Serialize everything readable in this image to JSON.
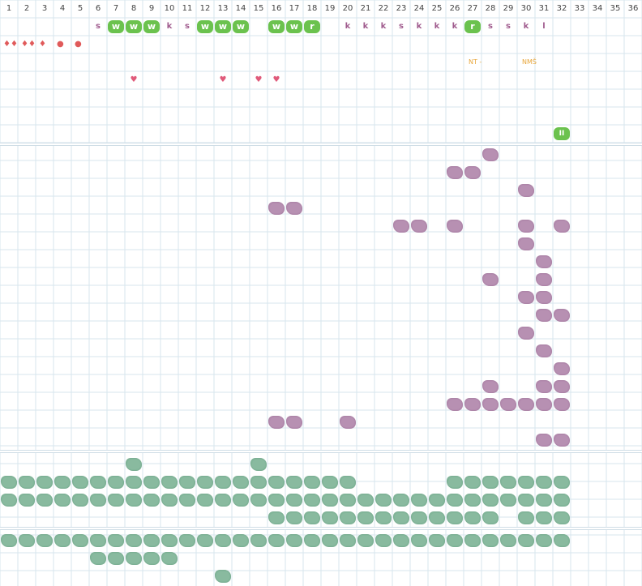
{
  "columns": [
    "1",
    "2",
    "3",
    "4",
    "5",
    "6",
    "7",
    "8",
    "9",
    "10",
    "11",
    "12",
    "13",
    "14",
    "15",
    "16",
    "17",
    "18",
    "19",
    "20",
    "21",
    "22",
    "23",
    "24",
    "25",
    "26",
    "27",
    "28",
    "29",
    "30",
    "31",
    "32",
    "33",
    "34",
    "35",
    "36"
  ],
  "colors": {
    "grid_line": "#d7e6ee",
    "green_letter": "#6bc24e",
    "purple_letter": "#a05c8e",
    "drop": "#e05a5a",
    "heart": "#e05a7a",
    "note": "#e8a63a",
    "purple_blob": "#b38aae",
    "green_blob": "#82b69a"
  },
  "letters_row": [
    {
      "col": 6,
      "text": "s",
      "style": "purple"
    },
    {
      "col": 7,
      "text": "w",
      "style": "green"
    },
    {
      "col": 8,
      "text": "w",
      "style": "green"
    },
    {
      "col": 9,
      "text": "w",
      "style": "green"
    },
    {
      "col": 10,
      "text": "k",
      "style": "purple"
    },
    {
      "col": 11,
      "text": "s",
      "style": "purple"
    },
    {
      "col": 12,
      "text": "w",
      "style": "green"
    },
    {
      "col": 13,
      "text": "w",
      "style": "green"
    },
    {
      "col": 14,
      "text": "w",
      "style": "green"
    },
    {
      "col": 16,
      "text": "w",
      "style": "green"
    },
    {
      "col": 17,
      "text": "w",
      "style": "green"
    },
    {
      "col": 18,
      "text": "r",
      "style": "green"
    },
    {
      "col": 20,
      "text": "k",
      "style": "purple"
    },
    {
      "col": 21,
      "text": "k",
      "style": "purple"
    },
    {
      "col": 22,
      "text": "k",
      "style": "purple"
    },
    {
      "col": 23,
      "text": "s",
      "style": "purple"
    },
    {
      "col": 24,
      "text": "k",
      "style": "purple"
    },
    {
      "col": 25,
      "text": "k",
      "style": "purple"
    },
    {
      "col": 26,
      "text": "k",
      "style": "purple"
    },
    {
      "col": 27,
      "text": "r",
      "style": "green"
    },
    {
      "col": 28,
      "text": "s",
      "style": "purple"
    },
    {
      "col": 29,
      "text": "s",
      "style": "purple"
    },
    {
      "col": 30,
      "text": "k",
      "style": "purple"
    },
    {
      "col": 31,
      "text": "l",
      "style": "purple"
    }
  ],
  "drops_row": [
    {
      "col": 1,
      "text": "♦♦"
    },
    {
      "col": 2,
      "text": "♦♦"
    },
    {
      "col": 3,
      "text": "♦"
    },
    {
      "col": 4,
      "text": "●"
    },
    {
      "col": 5,
      "text": "●"
    }
  ],
  "notes_row": [
    {
      "col": 27,
      "text": "NT -"
    },
    {
      "col": 30,
      "text": "NMŠ"
    }
  ],
  "hearts_row": [
    {
      "col": 8,
      "text": "♥"
    },
    {
      "col": 13,
      "text": "♥"
    },
    {
      "col": 15,
      "text": "♥"
    },
    {
      "col": 16,
      "text": "♥"
    }
  ],
  "pause_badge": {
    "col": 32,
    "text": "II"
  },
  "purple_blobs": [
    [
      28,
      8
    ],
    [
      26,
      9
    ],
    [
      27,
      9
    ],
    [
      30,
      10
    ],
    [
      16,
      11
    ],
    [
      17,
      11
    ],
    [
      23,
      12
    ],
    [
      24,
      12
    ],
    [
      26,
      12
    ],
    [
      30,
      12
    ],
    [
      32,
      12
    ],
    [
      30,
      13
    ],
    [
      31,
      14
    ],
    [
      28,
      15
    ],
    [
      31,
      15
    ],
    [
      30,
      16
    ],
    [
      31,
      16
    ],
    [
      31,
      17
    ],
    [
      32,
      17
    ],
    [
      30,
      18
    ],
    [
      31,
      19
    ],
    [
      32,
      20
    ],
    [
      28,
      21
    ],
    [
      31,
      21
    ],
    [
      32,
      21
    ],
    [
      26,
      22
    ],
    [
      27,
      22
    ],
    [
      28,
      22
    ],
    [
      29,
      22
    ],
    [
      30,
      22
    ],
    [
      31,
      22
    ],
    [
      32,
      22
    ],
    [
      16,
      23
    ],
    [
      17,
      23
    ],
    [
      20,
      23
    ],
    [
      31,
      24
    ],
    [
      32,
      24
    ]
  ],
  "green_blobs_section3": {
    "row1": [
      8,
      15
    ],
    "row2": [
      1,
      2,
      3,
      4,
      5,
      6,
      7,
      8,
      9,
      10,
      11,
      12,
      13,
      14,
      15,
      16,
      17,
      18,
      19,
      20,
      26,
      27,
      28,
      29,
      30,
      31,
      32
    ],
    "row3": [
      1,
      2,
      3,
      4,
      5,
      6,
      7,
      8,
      9,
      10,
      11,
      12,
      13,
      14,
      15,
      16,
      17,
      18,
      19,
      20,
      21,
      22,
      23,
      24,
      25,
      26,
      27,
      28,
      29,
      30,
      31,
      32
    ],
    "row4": [
      16,
      17,
      18,
      19,
      20,
      21,
      22,
      23,
      24,
      25,
      26,
      27,
      28,
      30,
      31,
      32
    ]
  },
  "green_blobs_section4": {
    "row1": [
      1,
      2,
      3,
      4,
      5,
      6,
      7,
      8,
      9,
      10,
      11,
      12,
      13,
      14,
      15,
      16,
      17,
      18,
      19,
      20,
      21,
      22,
      23,
      24,
      25,
      26,
      27,
      28,
      29,
      30,
      31,
      32
    ],
    "row2": [
      6,
      7,
      8,
      9,
      10
    ],
    "row3": [
      13
    ]
  }
}
